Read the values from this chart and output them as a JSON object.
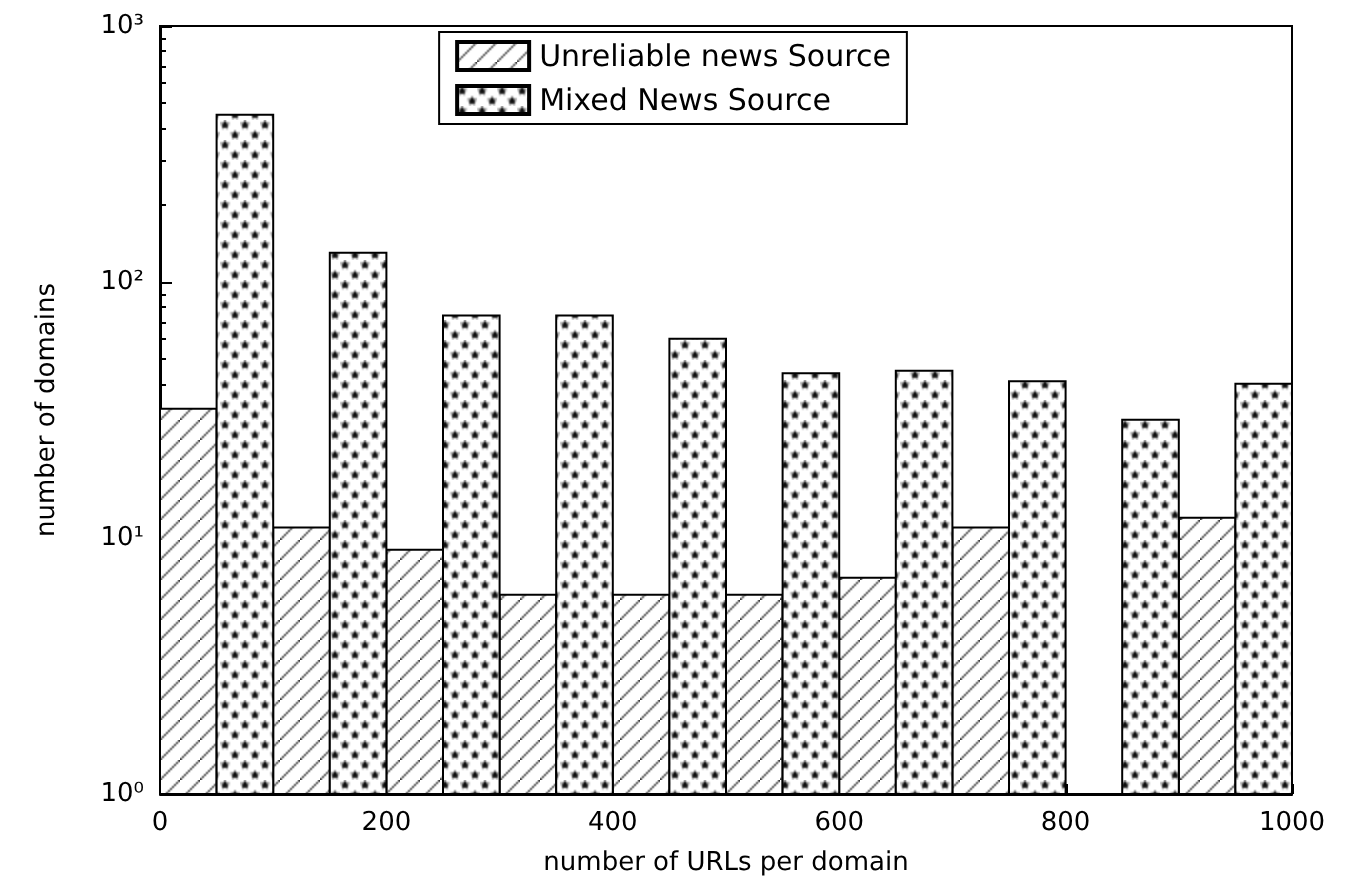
{
  "chart_data": {
    "type": "bar",
    "xlabel": "number of URLs per domain",
    "ylabel": "number of domains",
    "series": [
      {
        "name": "Unreliable news Source",
        "color": "#000000",
        "x": [
          25,
          125,
          225,
          325,
          425,
          525,
          625,
          725,
          825,
          925
        ],
        "values": [
          32,
          11,
          9,
          6,
          6,
          6,
          7,
          11,
          null,
          12
        ]
      },
      {
        "name": "Mixed News Source",
        "color": "#000000",
        "x": [
          75,
          175,
          275,
          375,
          475,
          575,
          675,
          775,
          875,
          975
        ],
        "values": [
          450,
          130,
          74,
          74,
          60,
          44,
          45,
          41,
          29,
          40
        ]
      }
    ],
    "log": "y",
    "grid": false,
    "legend": "top",
    "xlim": [
      0,
      1000
    ],
    "xticks": [
      0,
      200,
      400,
      600,
      800,
      1000
    ],
    "ylim": [
      1,
      1000
    ],
    "yticks": [
      {
        "value": 1,
        "label": "10⁰"
      },
      {
        "value": 10,
        "label": "10¹"
      },
      {
        "value": 100,
        "label": "10²"
      },
      {
        "value": 1000,
        "label": "10³"
      }
    ]
  }
}
